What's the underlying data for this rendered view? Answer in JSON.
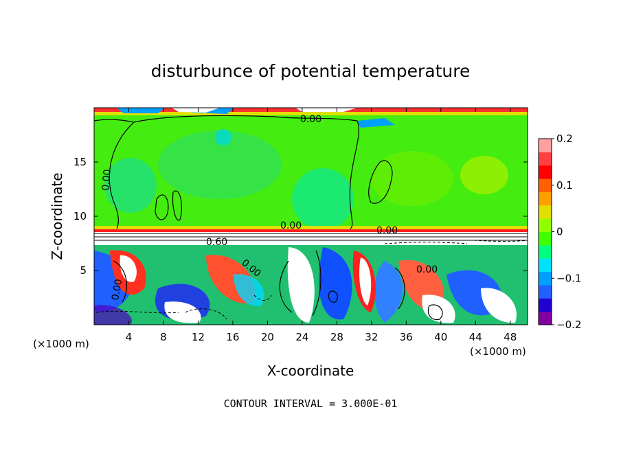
{
  "chart_data": {
    "type": "heatmap",
    "title": "disturbunce of potential temperature",
    "xlabel": "X-coordinate",
    "ylabel": "Z-coordinate",
    "x_unit_label": "(×1000 m)",
    "y_unit_label": "(×1000 m)",
    "xlim": [
      0,
      50
    ],
    "ylim": [
      0,
      20
    ],
    "x_ticks": [
      "4",
      "8",
      "12",
      "16",
      "20",
      "24",
      "28",
      "32",
      "36",
      "40",
      "44",
      "48"
    ],
    "y_ticks": [
      "5",
      "10",
      "15"
    ],
    "colorbar": {
      "ticks": [
        "0.2",
        "0.1",
        "0",
        "−0.1",
        "−0.2"
      ],
      "range": [
        -0.2,
        0.2
      ],
      "colors": [
        "#8000a0",
        "#2000d0",
        "#2060ff",
        "#00a0ff",
        "#00e0ff",
        "#00ff80",
        "#40ff00",
        "#90ff00",
        "#e0e000",
        "#ffa000",
        "#ff6000",
        "#ff0000",
        "#ff4040",
        "#ffa0a0"
      ]
    },
    "contour_labels": [
      "0.00",
      "0.00",
      "0.00",
      "0.00",
      "0.00",
      "0.00",
      "0.60",
      "0.00"
    ],
    "footer": "CONTOUR INTERVAL = 3.000E-01",
    "layers": [
      {
        "z_range": [
          9,
          19.3
        ],
        "description": "near-zero disturbance (green)"
      },
      {
        "z_range": [
          7.4,
          9
        ],
        "description": "sharp inversion band"
      },
      {
        "z_range": [
          0,
          7.4
        ],
        "description": "convective eddies, values between -0.2 and 0.2"
      }
    ]
  }
}
